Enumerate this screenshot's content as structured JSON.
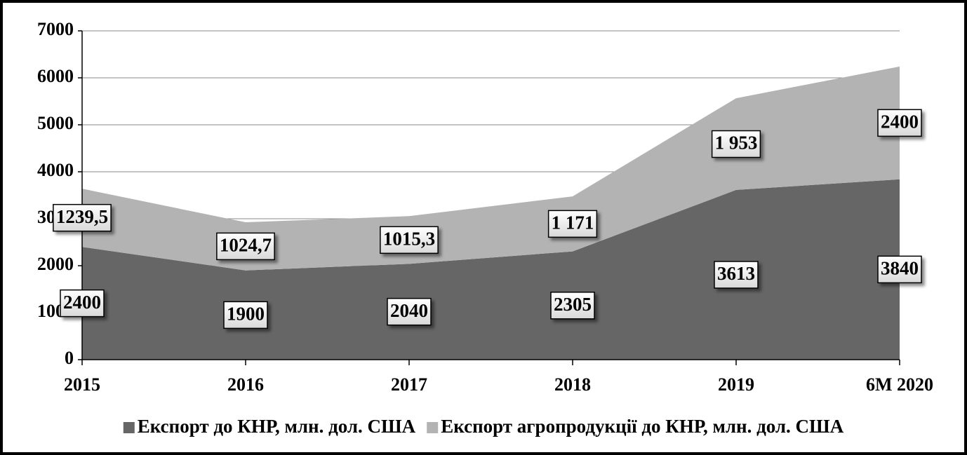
{
  "chart_data": {
    "type": "stacked_area",
    "categories": [
      "2015",
      "2016",
      "2017",
      "2018",
      "2019",
      "6M 2020"
    ],
    "series": [
      {
        "name": "Експорт до КНР, млн. дол. США",
        "color": "#666666",
        "values": [
          2400,
          1900,
          2040,
          2305,
          3613,
          3840
        ]
      },
      {
        "name": "Експорт агропродукції до КНР, млн. дол. США",
        "color": "#b3b3b3",
        "values": [
          1239.5,
          1024.7,
          1015.3,
          1171,
          1953,
          2400
        ],
        "value_labels": [
          "1239,5",
          "1024,7",
          "1015,3",
          "1 171",
          "1 953",
          "2400"
        ]
      }
    ],
    "ylim": [
      0,
      7000
    ],
    "yticks": [
      0,
      1000,
      2000,
      3000,
      4000,
      5000,
      6000,
      7000
    ],
    "grid": true
  }
}
